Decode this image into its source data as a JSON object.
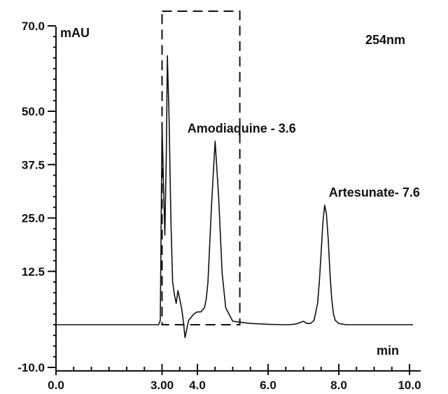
{
  "chart_data": {
    "type": "line",
    "title": "",
    "wavelength_label": "254nm",
    "xlabel": "min",
    "ylabel": "mAU",
    "xlim": [
      0,
      10.5
    ],
    "ylim": [
      -10,
      72
    ],
    "y_ticks": [
      "70.0",
      "50.0",
      "37.5",
      "25.0",
      "12.5",
      "-10.0"
    ],
    "y_tick_values": [
      70,
      50,
      37.5,
      25,
      12.5,
      -10
    ],
    "x_ticks": [
      "0.0",
      "3.00",
      "4.0",
      "6.0",
      "8.0",
      "10.0"
    ],
    "x_tick_values": [
      0,
      3,
      4,
      6,
      8,
      10
    ],
    "baseline": 0,
    "fraction_window": {
      "x_start": 3.0,
      "x_end": 5.2,
      "top": 72
    },
    "series": [
      {
        "x": [
          0.0,
          1.0,
          2.0,
          2.9,
          2.95,
          3.0,
          3.05,
          3.08,
          3.12,
          3.15,
          3.2,
          3.25,
          3.3,
          3.35,
          3.4,
          3.45,
          3.5,
          3.55,
          3.6,
          3.65,
          3.7,
          3.75,
          3.8,
          3.85,
          3.9,
          3.95,
          4.0,
          4.05,
          4.1,
          4.15,
          4.2,
          4.25,
          4.3,
          4.4,
          4.5,
          4.6,
          4.7,
          4.8,
          5.0,
          5.5,
          6.0,
          6.5,
          6.6,
          6.8,
          6.9,
          7.0,
          7.1,
          7.2,
          7.3,
          7.4,
          7.45,
          7.5,
          7.55,
          7.6,
          7.65,
          7.7,
          7.75,
          7.8,
          7.85,
          7.9,
          8.0,
          8.2,
          8.5,
          9.0,
          9.5,
          10.1
        ],
        "y": [
          0,
          0,
          0,
          0,
          1,
          47,
          30,
          21,
          40,
          63,
          48,
          25,
          10,
          7,
          5,
          8,
          6,
          4,
          1,
          -3,
          -1,
          1,
          1.5,
          2,
          2.5,
          2.8,
          3,
          3,
          3,
          3.5,
          4,
          6,
          10,
          28,
          43,
          30,
          12,
          4,
          0.8,
          0.3,
          0.1,
          0,
          0,
          0.2,
          0.5,
          0.8,
          0.3,
          0.3,
          1,
          5,
          10,
          17,
          24,
          28,
          26,
          20,
          12,
          6,
          2.5,
          1,
          0.3,
          0,
          0,
          0,
          0,
          0
        ]
      }
    ],
    "annotations": [
      {
        "text": "Amodiaquine - 3.6",
        "x": 3.6,
        "y": 43
      },
      {
        "text": "Artesunate- 7.6",
        "x": 7.6,
        "y": 28
      }
    ]
  }
}
